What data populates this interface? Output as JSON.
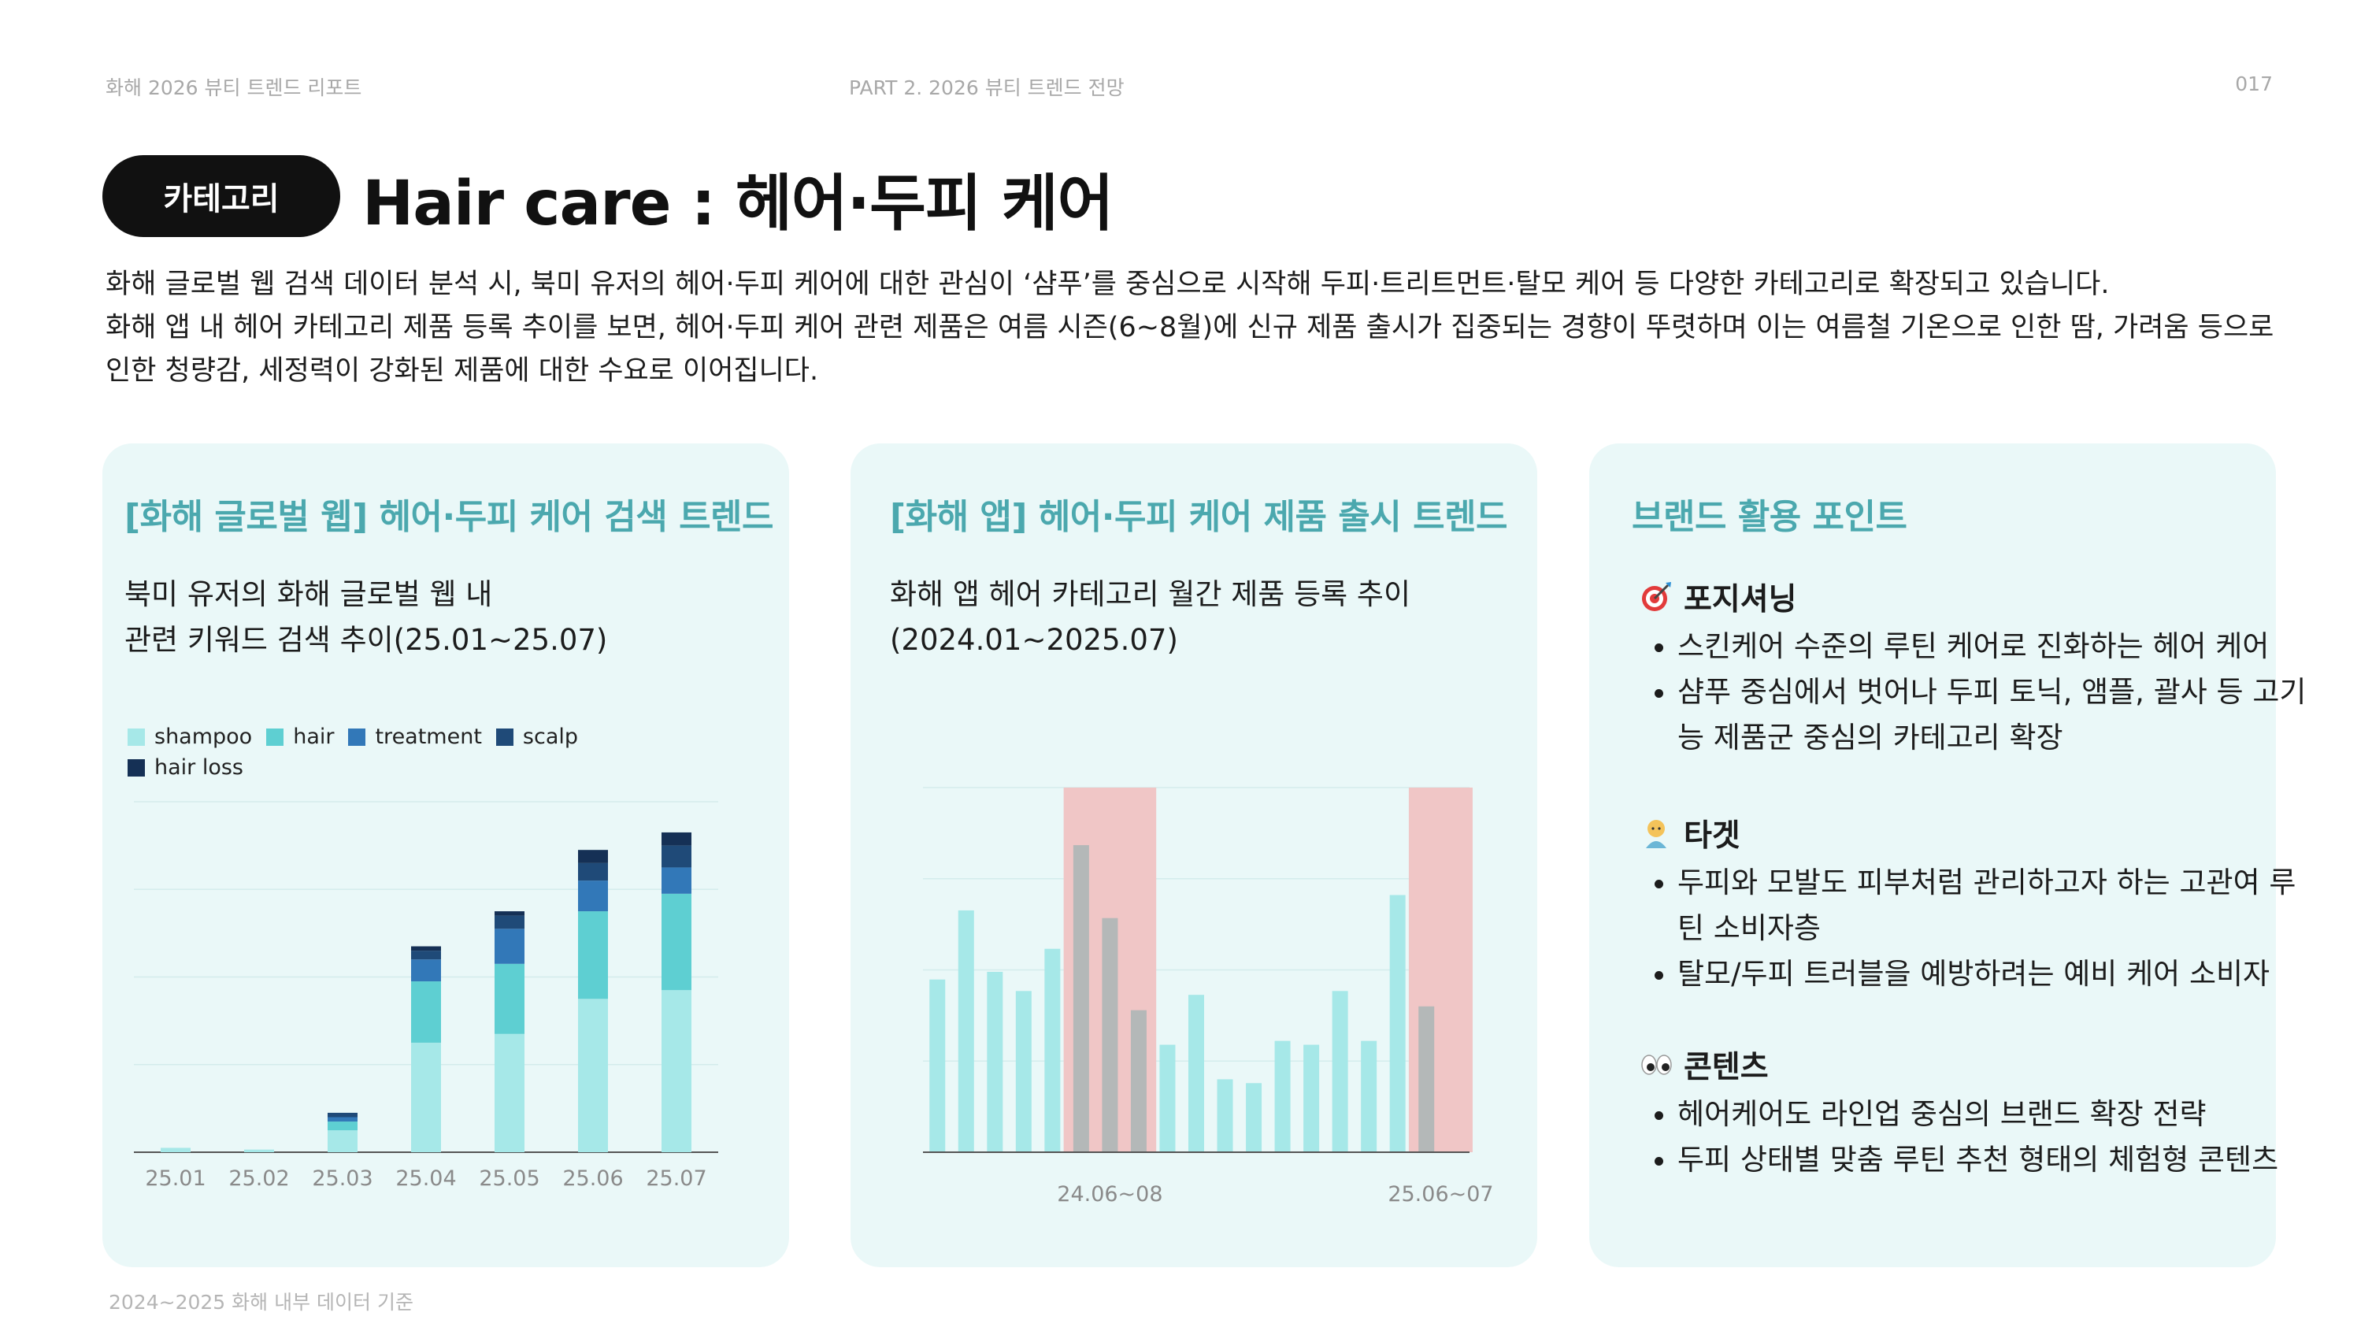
{
  "header": {
    "left": "화해 2026 뷰티 트렌드 리포트",
    "center": "PART 2. 2026 뷰티 트렌드 전망",
    "page_number": "017"
  },
  "category_badge": "카테고리",
  "title": "Hair care : 헤어·두피 케어",
  "intro": [
    "화해 글로벌 웹 검색 데이터 분석 시, 북미 유저의 헤어·두피 케어에 대한 관심이 ‘샴푸’를 중심으로 시작해 두피·트리트먼트·탈모 케어 등 다양한 카테고리로 확장되고 있습니다.",
    "화해 앱 내 헤어 카테고리 제품 등록 추이를 보면, 헤어·두피 케어 관련 제품은 여름 시즌(6~8월)에 신규 제품 출시가 집중되는 경향이 뚜렷하며 이는 여름철 기온으로 인한 땀, 가려움 등으로 인한 청량감, 세정력이 강화된 제품에 대한 수요로 이어집니다."
  ],
  "card1": {
    "title": "[화해 글로벌 웹] 헤어·두피 케어 검색 트렌드",
    "subtitle_lines": [
      "북미 유저의 화해 글로벌 웹 내",
      "관련 키워드 검색 추이(25.01~25.07)"
    ]
  },
  "card2": {
    "title": "[화해 앱] 헤어·두피 케어 제품 출시 트렌드",
    "subtitle_lines": [
      "화해 앱 헤어 카테고리 월간 제품 등록 추이",
      "(2024.01~2025.07)"
    ]
  },
  "card3": {
    "title": "브랜드 활용 포인트",
    "sections": [
      {
        "icon": "target-icon",
        "heading": "포지셔닝",
        "bullets": [
          "스킨케어 수준의 루틴 케어로 진화하는 헤어 케어",
          "샴푸 중심에서 벗어나 두피 토닉, 앰플, 괄사 등 고기능 제품군 중심의 카테고리 확장"
        ]
      },
      {
        "icon": "person-icon",
        "heading": "타겟",
        "bullets": [
          "두피와 모발도 피부처럼 관리하고자 하는 고관여 루틴 소비자층",
          "탈모/두피 트러블을 예방하려는 예비 케어 소비자"
        ]
      },
      {
        "icon": "eyes-icon",
        "heading": "콘텐츠",
        "bullets": [
          "헤어케어도 라인업 중심의 브랜드 확장 전략",
          "두피 상태별 맞춤 루틴 추천 형태의 체험형 콘텐츠"
        ]
      }
    ]
  },
  "footnote": "2024~2025 화해 내부 데이터 기준",
  "colors": {
    "shampoo": "#a6e8e8",
    "hair": "#5ecfd2",
    "treatment": "#3278b8",
    "scalp": "#1f4a78",
    "hair_loss": "#153055",
    "bar_teal": "#a6e8e8",
    "bar_gray": "#b4b8b8",
    "highlight": "#f0c6c6",
    "accent": "#4ba8ae"
  },
  "chart_data": [
    {
      "type": "bar",
      "stacked": true,
      "categories": [
        "25.01",
        "25.02",
        "25.03",
        "25.04",
        "25.05",
        "25.06",
        "25.07"
      ],
      "series": [
        {
          "name": "shampoo",
          "values": [
            0.5,
            0.3,
            2.5,
            12.5,
            13.5,
            17.5,
            18.5
          ]
        },
        {
          "name": "hair",
          "values": [
            0,
            0,
            1,
            7,
            8,
            10,
            11
          ]
        },
        {
          "name": "treatment",
          "values": [
            0,
            0,
            0.5,
            2.5,
            4,
            3.5,
            3
          ]
        },
        {
          "name": "scalp",
          "values": [
            0,
            0,
            0.5,
            1,
            1.5,
            2,
            2.5
          ]
        },
        {
          "name": "hair loss",
          "values": [
            0,
            0,
            0,
            0.5,
            0.5,
            1.5,
            1.5
          ]
        }
      ],
      "ylim": [
        0,
        40
      ],
      "grid": true,
      "legend": "top-left"
    },
    {
      "type": "bar",
      "x": [
        "2024.01",
        "2024.02",
        "2024.03",
        "2024.04",
        "2024.05",
        "2024.06",
        "2024.07",
        "2024.08",
        "2024.09",
        "2024.10",
        "2024.11",
        "2024.12",
        "2025.01",
        "2025.02",
        "2025.03",
        "2025.04",
        "2025.05",
        "2025.06",
        "2025.07"
      ],
      "values": [
        45,
        63,
        47,
        42,
        53,
        80,
        61,
        37,
        28,
        41,
        19,
        18,
        29,
        28,
        42,
        29,
        67,
        38,
        0
      ],
      "highlight_periods": [
        {
          "label": "24.06~08",
          "from": "2024.06",
          "to": "2024.08"
        },
        {
          "label": "25.06~07",
          "from": "2025.06",
          "to": "2025.07"
        }
      ],
      "ylim": [
        0,
        95
      ],
      "grid": true
    }
  ]
}
